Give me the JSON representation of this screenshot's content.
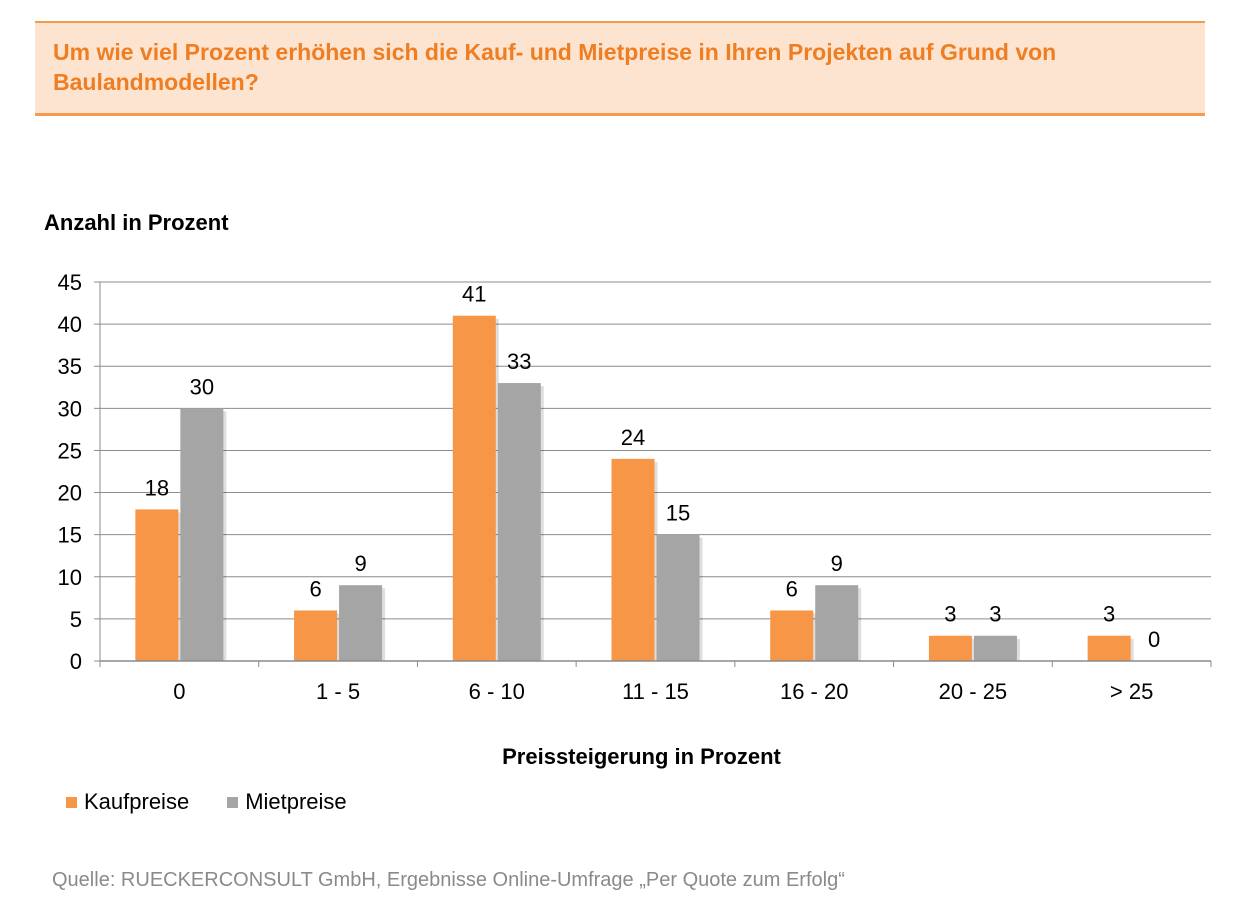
{
  "header": {
    "title": "Um wie viel Prozent erhöhen sich die Kauf- und Mietpreise in Ihren Projekten auf Grund von Baulandmodellen?"
  },
  "chart_data": {
    "type": "bar",
    "ylabel": "Anzahl in Prozent",
    "xlabel": "Preissteigerung in Prozent",
    "categories": [
      "0",
      "1 - 5",
      "6 - 10",
      "11 - 15",
      "16 - 20",
      "20 - 25",
      "> 25"
    ],
    "series": [
      {
        "name": "Kaufpreise",
        "color": "#f79646",
        "values": [
          18,
          6,
          41,
          24,
          6,
          3,
          3
        ]
      },
      {
        "name": "Mietpreise",
        "color": "#a5a5a5",
        "values": [
          30,
          9,
          33,
          15,
          9,
          3,
          0
        ]
      }
    ],
    "ylim": [
      0,
      45
    ],
    "yticks": [
      0,
      5,
      10,
      15,
      20,
      25,
      30,
      35,
      40,
      45
    ],
    "grid": true,
    "data_labels": true,
    "legend_position": "bottom-left"
  },
  "source": "Quelle: RUECKERCONSULT GmbH, Ergebnisse Online-Umfrage „Per Quote zum Erfolg“"
}
